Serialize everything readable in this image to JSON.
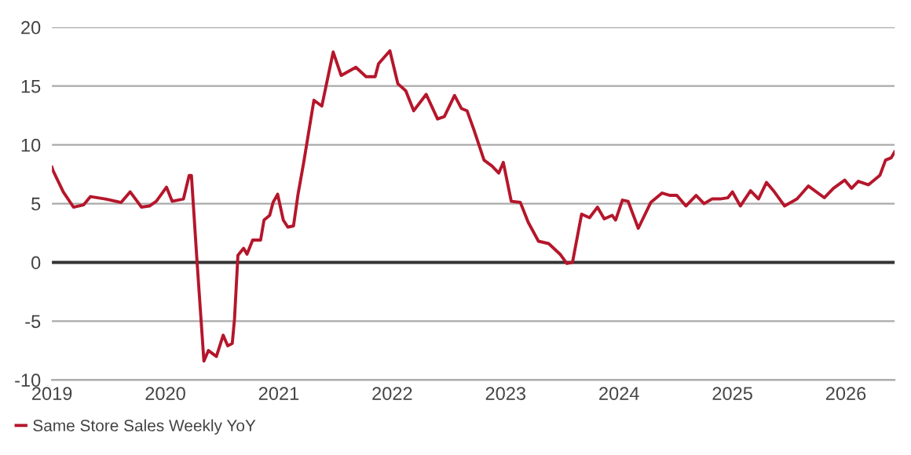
{
  "chart_data": {
    "type": "line",
    "x": [
      2019.0,
      2019.01,
      2019.1,
      2019.19,
      2019.28,
      2019.34,
      2019.47,
      2019.61,
      2019.69,
      2019.79,
      2019.86,
      2019.92,
      2020.01,
      2020.06,
      2020.16,
      2020.21,
      2020.23,
      2020.28,
      2020.34,
      2020.38,
      2020.45,
      2020.51,
      2020.55,
      2020.59,
      2020.61,
      2020.64,
      2020.69,
      2020.72,
      2020.77,
      2020.84,
      2020.87,
      2020.92,
      2020.95,
      2020.99,
      2021.04,
      2021.08,
      2021.13,
      2021.17,
      2021.22,
      2021.31,
      2021.38,
      2021.48,
      2021.55,
      2021.68,
      2021.77,
      2021.85,
      2021.88,
      2021.98,
      2022.05,
      2022.12,
      2022.19,
      2022.3,
      2022.4,
      2022.46,
      2022.55,
      2022.61,
      2022.66,
      2022.72,
      2022.81,
      2022.88,
      2022.94,
      2022.98,
      2023.05,
      2023.13,
      2023.2,
      2023.29,
      2023.38,
      2023.48,
      2023.54,
      2023.59,
      2023.67,
      2023.74,
      2023.81,
      2023.87,
      2023.94,
      2023.97,
      2024.03,
      2024.08,
      2024.17,
      2024.28,
      2024.38,
      2024.45,
      2024.51,
      2024.59,
      2024.68,
      2024.75,
      2024.82,
      2024.89,
      2024.96,
      2025.0,
      2025.07,
      2025.16,
      2025.23,
      2025.3,
      2025.37,
      2025.46,
      2025.57,
      2025.67,
      2025.81,
      2025.89,
      2025.99,
      2026.05,
      2026.11,
      2026.2,
      2026.3,
      2026.35,
      2026.4,
      2026.43
    ],
    "series": [
      {
        "name": "Same Store Sales Weekly YoY",
        "color": "#b5162b",
        "values": [
          8.1,
          7.8,
          6.0,
          4.7,
          4.9,
          5.6,
          5.4,
          5.1,
          6.0,
          4.7,
          4.8,
          5.2,
          6.4,
          5.2,
          5.4,
          7.4,
          7.4,
          0.0,
          -8.4,
          -7.5,
          -8.0,
          -6.2,
          -7.1,
          -6.9,
          -4.8,
          0.6,
          1.2,
          0.7,
          1.9,
          1.9,
          3.6,
          4.0,
          5.1,
          5.8,
          3.6,
          3.0,
          3.1,
          5.8,
          8.5,
          13.8,
          13.3,
          17.9,
          15.9,
          16.6,
          15.8,
          15.8,
          16.9,
          18.0,
          15.2,
          14.6,
          12.9,
          14.3,
          12.2,
          12.4,
          14.2,
          13.1,
          12.9,
          11.3,
          8.7,
          8.2,
          7.6,
          8.5,
          5.2,
          5.1,
          3.4,
          1.8,
          1.6,
          0.7,
          -0.1,
          0.0,
          4.1,
          3.8,
          4.7,
          3.7,
          4.0,
          3.6,
          5.3,
          5.2,
          2.9,
          5.1,
          5.9,
          5.7,
          5.7,
          4.8,
          5.7,
          5.0,
          5.4,
          5.4,
          5.5,
          6.0,
          4.8,
          6.1,
          5.4,
          6.8,
          6.0,
          4.8,
          5.4,
          6.5,
          5.5,
          6.3,
          7.0,
          6.3,
          6.9,
          6.6,
          7.4,
          8.7,
          8.9,
          9.4
        ]
      }
    ],
    "xlim": [
      2019,
      2026.43
    ],
    "xticks": [
      2019,
      2020,
      2021,
      2022,
      2023,
      2024,
      2025,
      2026
    ],
    "ylim": [
      -10,
      20
    ],
    "yticks": [
      -10,
      -5,
      0,
      5,
      10,
      15,
      20
    ],
    "grid": "y",
    "legend": "bottom left",
    "marker": "none",
    "line_style": "solid",
    "ref_lines": [
      {
        "axis": "y",
        "value": 0,
        "color": "#333333"
      }
    ]
  }
}
